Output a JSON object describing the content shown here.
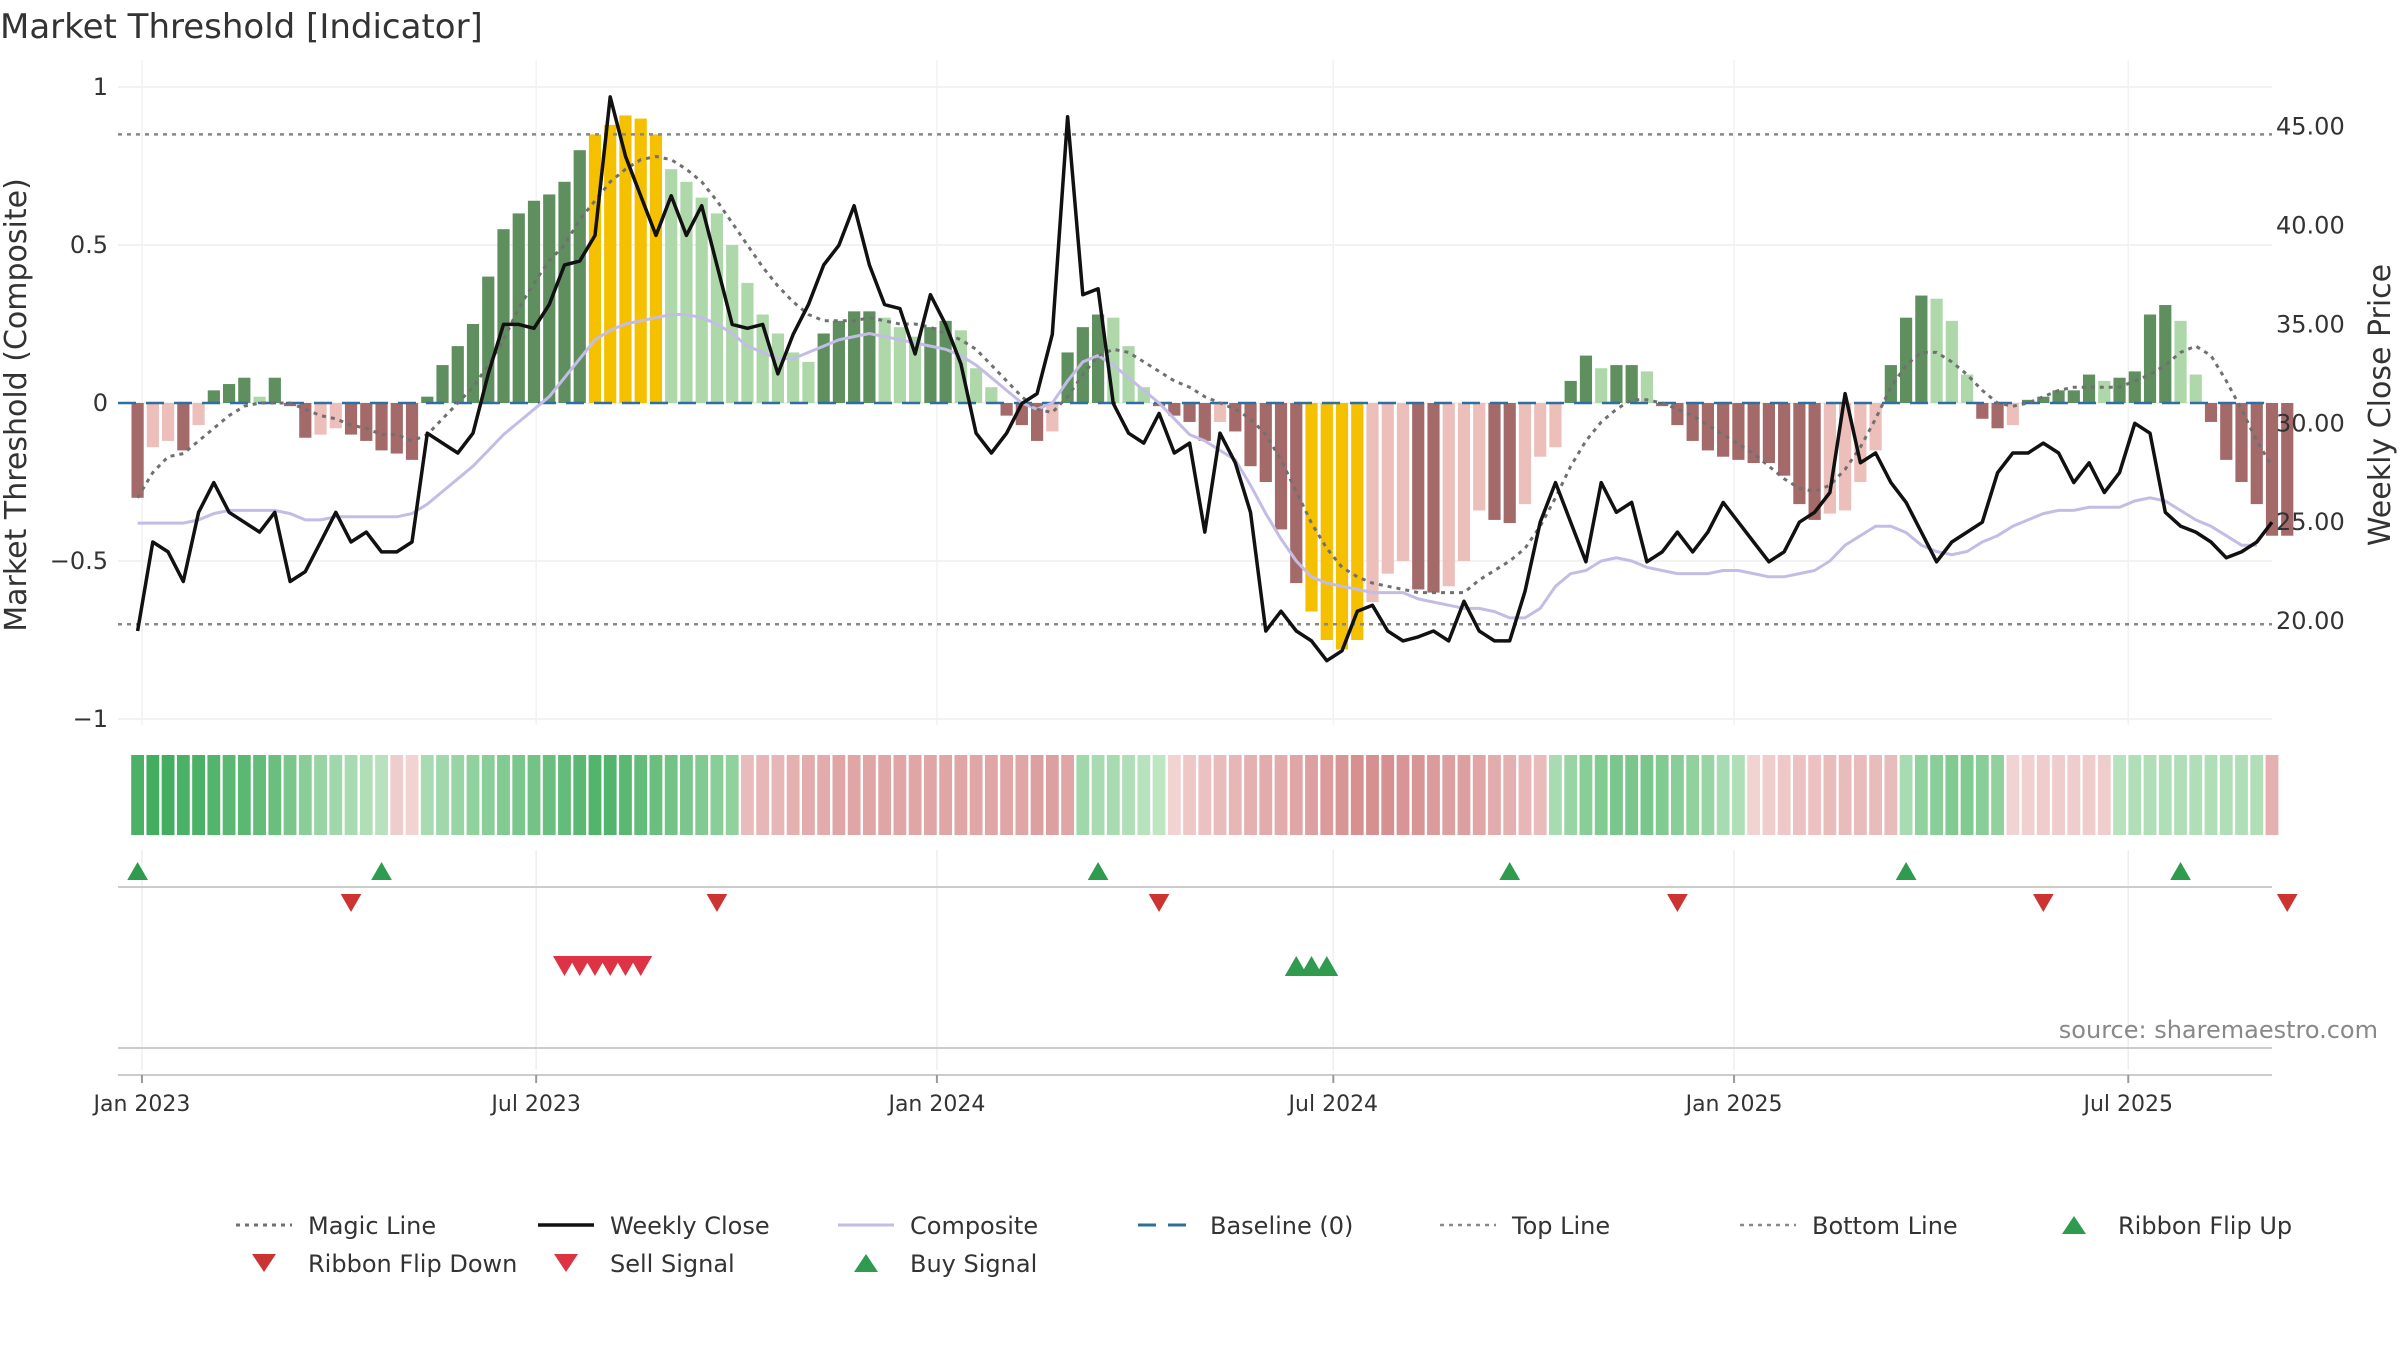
{
  "chart_data": {
    "type": "bar",
    "title": "Market Threshold [Indicator]",
    "ylabel": "Market Threshold (Composite)",
    "ylabel_right": "Weekly Close Price",
    "source": "source: sharemaestro.com",
    "ylim": [
      -1,
      1
    ],
    "ylim_right": [
      15.0,
      47.0
    ],
    "yticks": [
      {
        "v": 1,
        "t": "1"
      },
      {
        "v": 0.5,
        "t": "0.5"
      },
      {
        "v": 0,
        "t": "0"
      },
      {
        "v": -0.5,
        "t": "−0.5"
      },
      {
        "v": -1,
        "t": "−1"
      }
    ],
    "yticks_right": [
      {
        "v": 45,
        "t": "45.00"
      },
      {
        "v": 40,
        "t": "40.00"
      },
      {
        "v": 35,
        "t": "35.00"
      },
      {
        "v": 30,
        "t": "30.00"
      },
      {
        "v": 25,
        "t": "25.00"
      },
      {
        "v": 20,
        "t": "20.00"
      }
    ],
    "xticks": [
      {
        "date": "2023-01-01",
        "t": "Jan 2023"
      },
      {
        "date": "2023-07-01",
        "t": "Jul 2023"
      },
      {
        "date": "2024-01-01",
        "t": "Jan 2024"
      },
      {
        "date": "2024-07-01",
        "t": "Jul 2024"
      },
      {
        "date": "2025-01-01",
        "t": "Jan 2025"
      },
      {
        "date": "2025-07-01",
        "t": "Jul 2025"
      }
    ],
    "x_range": [
      "2022-12-21",
      "2025-09-05"
    ],
    "top_line": 0.85,
    "bottom_line": -0.7,
    "baseline": 0,
    "grid": true,
    "legend_position": "bottom",
    "series": [
      {
        "name": "Magic Line",
        "type": "line",
        "style": "dotted",
        "color": "#777777",
        "x_start": "2022-12-30",
        "step_days": 7,
        "values": [
          -0.3,
          -0.22,
          -0.17,
          -0.16,
          -0.12,
          -0.08,
          -0.04,
          -0.01,
          0.0,
          0.0,
          0.0,
          -0.02,
          -0.04,
          -0.05,
          -0.07,
          -0.08,
          -0.1,
          -0.1,
          -0.12,
          -0.1,
          -0.05,
          0.0,
          0.05,
          0.12,
          0.2,
          0.3,
          0.38,
          0.45,
          0.5,
          0.58,
          0.64,
          0.7,
          0.74,
          0.77,
          0.78,
          0.77,
          0.74,
          0.7,
          0.64,
          0.57,
          0.5,
          0.43,
          0.37,
          0.32,
          0.28,
          0.26,
          0.26,
          0.26,
          0.27,
          0.26,
          0.25,
          0.25,
          0.24,
          0.22,
          0.2,
          0.17,
          0.12,
          0.07,
          0.02,
          -0.02,
          -0.03,
          0.02,
          0.09,
          0.15,
          0.17,
          0.16,
          0.13,
          0.1,
          0.07,
          0.05,
          0.02,
          0.0,
          -0.02,
          -0.05,
          -0.1,
          -0.18,
          -0.28,
          -0.38,
          -0.46,
          -0.52,
          -0.55,
          -0.57,
          -0.58,
          -0.59,
          -0.6,
          -0.6,
          -0.6,
          -0.6,
          -0.56,
          -0.53,
          -0.5,
          -0.46,
          -0.39,
          -0.3,
          -0.2,
          -0.12,
          -0.06,
          -0.02,
          0.01,
          0.01,
          0.0,
          -0.02,
          -0.04,
          -0.07,
          -0.1,
          -0.13,
          -0.16,
          -0.2,
          -0.24,
          -0.27,
          -0.28,
          -0.26,
          -0.21,
          -0.14,
          -0.05,
          0.05,
          0.12,
          0.16,
          0.16,
          0.13,
          0.09,
          0.04,
          0.0,
          -0.01,
          0.0,
          0.02,
          0.04,
          0.05,
          0.05,
          0.05,
          0.05,
          0.07,
          0.09,
          0.12,
          0.16,
          0.18,
          0.15,
          0.07,
          -0.02,
          -0.12,
          -0.2,
          -0.26
        ]
      },
      {
        "name": "Weekly Close",
        "type": "line",
        "style": "solid",
        "color": "#111111",
        "axis": "right",
        "x_start": "2022-12-30",
        "step_days": 7,
        "values": [
          19.5,
          24.0,
          23.5,
          22.0,
          25.5,
          27.0,
          25.5,
          25.0,
          24.5,
          25.5,
          22.0,
          22.5,
          24.0,
          25.5,
          24.0,
          24.5,
          23.5,
          23.5,
          24.0,
          29.5,
          29.0,
          28.5,
          29.5,
          32.5,
          35.0,
          35.0,
          34.8,
          36.0,
          38.0,
          38.2,
          39.5,
          46.5,
          43.5,
          41.5,
          39.5,
          41.5,
          39.5,
          41.0,
          38.0,
          35.0,
          34.8,
          35.0,
          32.5,
          34.5,
          36.0,
          38.0,
          39.0,
          41.0,
          38.0,
          36.0,
          35.8,
          33.5,
          36.5,
          35.0,
          33.0,
          29.5,
          28.5,
          29.5,
          31.0,
          31.5,
          34.5,
          45.5,
          36.5,
          36.8,
          31.0,
          29.5,
          29.0,
          30.5,
          28.5,
          29.0,
          24.5,
          29.5,
          28.0,
          25.5,
          19.5,
          20.5,
          19.5,
          19.0,
          18.0,
          18.5,
          20.5,
          20.8,
          19.5,
          19.0,
          19.2,
          19.5,
          19.0,
          21.0,
          19.5,
          19.0,
          19.0,
          21.5,
          25.0,
          27.0,
          25.0,
          23.0,
          27.0,
          25.5,
          26.0,
          23.0,
          23.5,
          24.5,
          23.5,
          24.5,
          26.0,
          25.0,
          24.0,
          23.0,
          23.5,
          25.0,
          25.5,
          26.5,
          31.5,
          28.0,
          28.5,
          27.0,
          26.0,
          24.5,
          23.0,
          24.0,
          24.5,
          25.0,
          27.5,
          28.5,
          28.5,
          29.0,
          28.5,
          27.0,
          28.0,
          26.5,
          27.5,
          30.0,
          29.5,
          25.5,
          24.8,
          24.5,
          24.0,
          23.2,
          23.5,
          24.0,
          25.0
        ]
      },
      {
        "name": "Composite",
        "type": "line",
        "style": "solid",
        "color": "#c3bde6",
        "x_start": "2022-12-30",
        "step_days": 7,
        "values": [
          -0.38,
          -0.38,
          -0.38,
          -0.38,
          -0.37,
          -0.35,
          -0.34,
          -0.34,
          -0.34,
          -0.34,
          -0.35,
          -0.37,
          -0.37,
          -0.36,
          -0.36,
          -0.36,
          -0.36,
          -0.36,
          -0.35,
          -0.32,
          -0.28,
          -0.24,
          -0.2,
          -0.15,
          -0.1,
          -0.06,
          -0.02,
          0.02,
          0.08,
          0.14,
          0.2,
          0.23,
          0.25,
          0.26,
          0.27,
          0.28,
          0.28,
          0.27,
          0.25,
          0.22,
          0.18,
          0.16,
          0.14,
          0.14,
          0.16,
          0.18,
          0.2,
          0.21,
          0.22,
          0.21,
          0.2,
          0.19,
          0.18,
          0.17,
          0.15,
          0.12,
          0.08,
          0.04,
          0.0,
          -0.02,
          0.0,
          0.07,
          0.13,
          0.15,
          0.12,
          0.08,
          0.04,
          0.0,
          -0.05,
          -0.1,
          -0.12,
          -0.15,
          -0.18,
          -0.26,
          -0.35,
          -0.43,
          -0.5,
          -0.55,
          -0.57,
          -0.58,
          -0.59,
          -0.6,
          -0.6,
          -0.6,
          -0.62,
          -0.63,
          -0.64,
          -0.65,
          -0.65,
          -0.66,
          -0.68,
          -0.68,
          -0.65,
          -0.58,
          -0.54,
          -0.53,
          -0.5,
          -0.49,
          -0.5,
          -0.52,
          -0.53,
          -0.54,
          -0.54,
          -0.54,
          -0.53,
          -0.53,
          -0.54,
          -0.55,
          -0.55,
          -0.54,
          -0.53,
          -0.5,
          -0.45,
          -0.42,
          -0.39,
          -0.39,
          -0.41,
          -0.45,
          -0.47,
          -0.48,
          -0.47,
          -0.44,
          -0.42,
          -0.39,
          -0.37,
          -0.35,
          -0.34,
          -0.34,
          -0.33,
          -0.33,
          -0.33,
          -0.31,
          -0.3,
          -0.31,
          -0.34,
          -0.37,
          -0.39,
          -0.42,
          -0.45,
          -0.45
        ]
      },
      {
        "name": "Baseline (0)",
        "type": "line",
        "style": "dashed",
        "color": "#2e6f9e"
      },
      {
        "name": "Top Line",
        "type": "line",
        "style": "dotted",
        "color": "#888888"
      },
      {
        "name": "Bottom Line",
        "type": "line",
        "style": "dotted",
        "color": "#888888"
      },
      {
        "name": "Ribbon Flip Up",
        "type": "marker",
        "marker": "triangle-up",
        "color": "#2e9b4f",
        "dates": [
          "2022-12-30",
          "2023-04-21",
          "2024-03-15",
          "2024-09-20",
          "2025-03-21",
          "2025-07-25"
        ]
      },
      {
        "name": "Ribbon Flip Down",
        "type": "marker",
        "marker": "triangle-down",
        "color": "#cc3333",
        "dates": [
          "2023-04-07",
          "2023-09-22",
          "2024-04-12",
          "2024-12-06",
          "2025-05-23",
          "2025-09-12"
        ]
      },
      {
        "name": "Sell Signal",
        "type": "marker",
        "marker": "triangle-down",
        "color": "#dd3344",
        "dates": [
          "2023-07-14",
          "2023-07-21",
          "2023-07-28",
          "2023-08-04",
          "2023-08-11",
          "2023-08-18"
        ]
      },
      {
        "name": "Buy Signal",
        "type": "marker",
        "marker": "triangle-up",
        "color": "#2e9b4f",
        "dates": [
          "2024-06-14",
          "2024-06-21",
          "2024-06-28"
        ]
      }
    ],
    "composite_bars": {
      "x_start": "2022-12-30",
      "step_days": 7,
      "values": [
        -0.3,
        -0.14,
        -0.12,
        -0.15,
        -0.07,
        0.04,
        0.06,
        0.08,
        0.02,
        0.08,
        -0.01,
        -0.11,
        -0.1,
        -0.08,
        -0.1,
        -0.12,
        -0.15,
        -0.16,
        -0.18,
        0.02,
        0.12,
        0.18,
        0.25,
        0.4,
        0.55,
        0.6,
        0.64,
        0.66,
        0.7,
        0.8,
        0.85,
        0.88,
        0.91,
        0.9,
        0.85,
        0.74,
        0.7,
        0.65,
        0.6,
        0.5,
        0.38,
        0.28,
        0.22,
        0.16,
        0.13,
        0.22,
        0.26,
        0.29,
        0.29,
        0.27,
        0.24,
        0.21,
        0.24,
        0.26,
        0.23,
        0.11,
        0.05,
        -0.04,
        -0.07,
        -0.12,
        -0.09,
        0.16,
        0.24,
        0.28,
        0.27,
        0.18,
        0.05,
        -0.01,
        -0.04,
        -0.06,
        -0.12,
        -0.06,
        -0.09,
        -0.2,
        -0.25,
        -0.4,
        -0.57,
        -0.66,
        -0.75,
        -0.78,
        -0.75,
        -0.63,
        -0.54,
        -0.5,
        -0.59,
        -0.6,
        -0.58,
        -0.5,
        -0.34,
        -0.37,
        -0.38,
        -0.32,
        -0.17,
        -0.14,
        0.07,
        0.15,
        0.11,
        0.12,
        0.12,
        0.1,
        -0.01,
        -0.07,
        -0.12,
        -0.15,
        -0.17,
        -0.18,
        -0.19,
        -0.19,
        -0.23,
        -0.32,
        -0.37,
        -0.35,
        -0.34,
        -0.25,
        -0.15,
        0.12,
        0.27,
        0.34,
        0.33,
        0.26,
        0.09,
        -0.05,
        -0.08,
        -0.07,
        0.01,
        0.02,
        0.04,
        0.04,
        0.09,
        0.07,
        0.08,
        0.1,
        0.28,
        0.31,
        0.26,
        0.09,
        -0.06,
        -0.18,
        -0.25,
        -0.32,
        -0.42,
        -0.42
      ]
    },
    "ribbon": {
      "x_start": "2022-12-30",
      "step_days": 7,
      "levels_note": "-1..1 sentiment ribbon",
      "values": [
        0.9,
        0.95,
        0.95,
        0.9,
        0.9,
        0.85,
        0.8,
        0.8,
        0.75,
        0.7,
        0.6,
        0.5,
        0.4,
        0.35,
        0.3,
        0.25,
        0.2,
        -0.15,
        -0.1,
        0.3,
        0.35,
        0.4,
        0.45,
        0.5,
        0.55,
        0.6,
        0.65,
        0.7,
        0.75,
        0.8,
        0.85,
        0.85,
        0.8,
        0.75,
        0.7,
        0.65,
        0.6,
        0.55,
        0.5,
        0.45,
        -0.3,
        -0.35,
        -0.35,
        -0.4,
        -0.45,
        -0.45,
        -0.5,
        -0.5,
        -0.5,
        -0.5,
        -0.5,
        -0.5,
        -0.5,
        -0.5,
        -0.5,
        -0.5,
        -0.5,
        -0.5,
        -0.5,
        -0.55,
        -0.55,
        -0.5,
        0.35,
        0.3,
        0.3,
        0.25,
        0.2,
        0.15,
        -0.1,
        -0.2,
        -0.25,
        -0.3,
        -0.35,
        -0.4,
        -0.45,
        -0.45,
        -0.5,
        -0.55,
        -0.6,
        -0.65,
        -0.7,
        -0.7,
        -0.7,
        -0.65,
        -0.65,
        -0.6,
        -0.55,
        -0.55,
        -0.5,
        -0.45,
        -0.4,
        -0.35,
        -0.3,
        0.3,
        0.4,
        0.5,
        0.55,
        0.6,
        0.6,
        0.6,
        0.55,
        0.5,
        0.45,
        0.4,
        0.3,
        0.25,
        -0.1,
        -0.15,
        -0.2,
        -0.25,
        -0.25,
        -0.3,
        -0.3,
        -0.3,
        -0.3,
        -0.3,
        0.3,
        0.45,
        0.5,
        0.55,
        0.55,
        0.5,
        0.45,
        -0.1,
        -0.12,
        -0.15,
        -0.15,
        -0.15,
        -0.15,
        -0.15,
        0.2,
        0.25,
        0.25,
        0.25,
        0.25,
        0.25,
        0.25,
        0.25,
        0.25,
        0.25,
        -0.4,
        -0.45,
        -0.45,
        -0.45
      ]
    }
  }
}
